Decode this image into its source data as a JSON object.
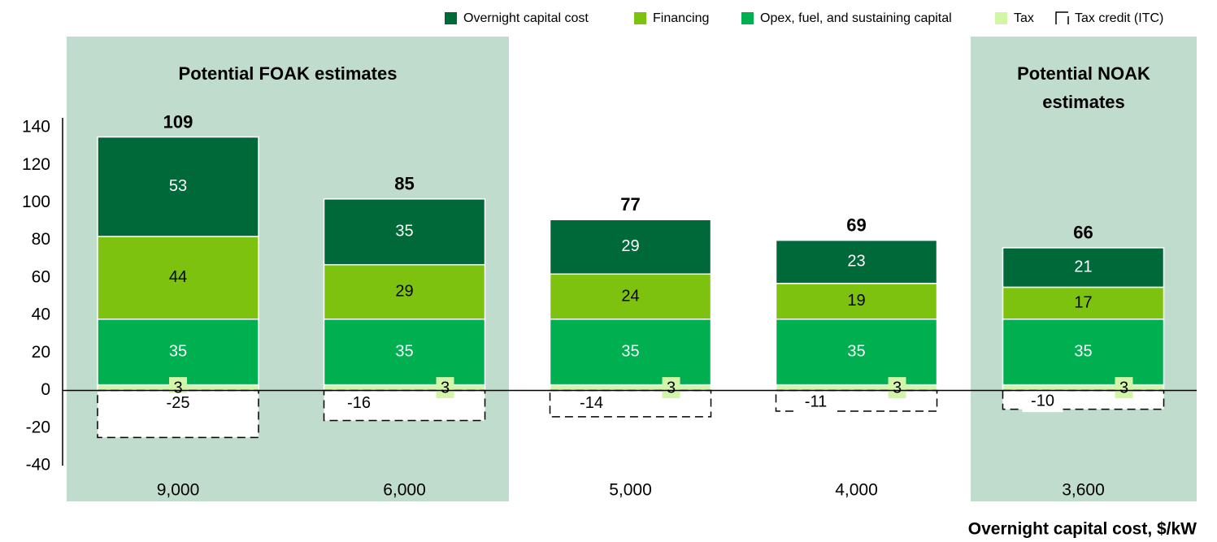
{
  "chart_data": {
    "type": "stacked_bar",
    "categories": [
      "9,000",
      "6,000",
      "5,000",
      "4,000",
      "3,600"
    ],
    "series": [
      {
        "name": "Overnight capital cost",
        "color": "#00693a",
        "values": [
          53,
          35,
          29,
          23,
          21
        ]
      },
      {
        "name": "Financing",
        "color": "#7dc20f",
        "values": [
          44,
          29,
          24,
          19,
          17
        ]
      },
      {
        "name": "Opex, fuel, and sustaining capital",
        "color": "#00b050",
        "values": [
          35,
          35,
          35,
          35,
          35
        ]
      },
      {
        "name": "Tax",
        "color": "#d3f5a8",
        "values": [
          3,
          3,
          3,
          3,
          3
        ]
      },
      {
        "name": "Tax credit (ITC)",
        "color": "#ffffff",
        "values": [
          -25,
          -16,
          -14,
          -11,
          -10
        ]
      }
    ],
    "totals": [
      109,
      85,
      77,
      69,
      66
    ],
    "annotations": [
      [
        "Potential FOAK estimates"
      ],
      [
        "Potential NOAK",
        "estimates"
      ]
    ],
    "xlabel": "Overnight capital cost, $/kW",
    "ylim": [
      -40,
      140
    ],
    "yticks": [
      -40,
      -20,
      0,
      20,
      40,
      60,
      80,
      100,
      120,
      140
    ],
    "grid": false,
    "legend": "top-right"
  }
}
